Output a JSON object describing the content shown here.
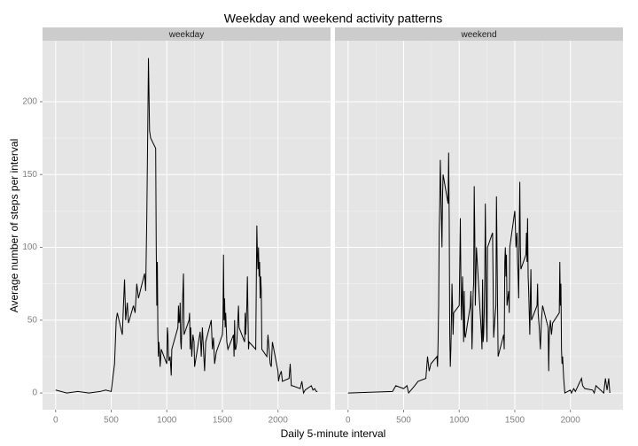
{
  "chart_data": {
    "type": "line",
    "title": "Weekday and weekend activity patterns",
    "x_label": "Daily 5-minute interval",
    "y_label": "Average number of steps per interval",
    "xlim": [
      -117.75,
      2472.75
    ],
    "xticks": [
      0,
      500,
      1000,
      1500,
      2000
    ],
    "ylim": [
      -11.5,
      241.9
    ],
    "yticks": [
      0,
      50,
      100,
      150,
      200
    ],
    "grid": true,
    "facets": true,
    "series": [
      {
        "name": "weekday",
        "color": "#000000",
        "x": [
          0,
          100,
          200,
          300,
          400,
          450,
          500,
          530,
          545,
          555,
          600,
          610,
          620,
          630,
          645,
          655,
          700,
          715,
          730,
          745,
          800,
          810,
          820,
          830,
          835,
          845,
          855,
          900,
          905,
          910,
          915,
          920,
          925,
          930,
          940,
          950,
          1000,
          1005,
          1010,
          1015,
          1020,
          1030,
          1040,
          1045,
          1100,
          1105,
          1110,
          1115,
          1120,
          1125,
          1130,
          1135,
          1150,
          1155,
          1200,
          1205,
          1210,
          1215,
          1225,
          1235,
          1245,
          1250,
          1300,
          1305,
          1310,
          1320,
          1330,
          1340,
          1350,
          1400,
          1410,
          1420,
          1430,
          1445,
          1500,
          1505,
          1510,
          1515,
          1520,
          1525,
          1530,
          1540,
          1550,
          1600,
          1605,
          1610,
          1615,
          1620,
          1630,
          1645,
          1650,
          1700,
          1705,
          1710,
          1720,
          1725,
          1735,
          1740,
          1800,
          1805,
          1810,
          1815,
          1820,
          1825,
          1830,
          1835,
          1840,
          1845,
          1850,
          1855,
          1900,
          1910,
          1920,
          1930,
          1940,
          1950,
          2000,
          2005,
          2015,
          2030,
          2040,
          2100,
          2110,
          2120,
          2130,
          2200,
          2215,
          2230,
          2245,
          2300,
          2315,
          2330,
          2345,
          2355
        ],
        "values": [
          2,
          0,
          1,
          0,
          1,
          2,
          1,
          20,
          50,
          55,
          40,
          60,
          78,
          50,
          62,
          48,
          60,
          55,
          75,
          65,
          82,
          70,
          120,
          190,
          230,
          180,
          175,
          168,
          100,
          60,
          90,
          40,
          25,
          35,
          18,
          30,
          20,
          45,
          40,
          25,
          22,
          25,
          12,
          30,
          45,
          60,
          48,
          50,
          62,
          35,
          30,
          45,
          82,
          40,
          50,
          55,
          30,
          45,
          25,
          40,
          35,
          18,
          42,
          35,
          25,
          45,
          30,
          15,
          35,
          50,
          30,
          38,
          20,
          28,
          40,
          48,
          95,
          50,
          65,
          45,
          55,
          35,
          30,
          40,
          25,
          50,
          30,
          30,
          35,
          60,
          45,
          35,
          55,
          40,
          60,
          80,
          30,
          35,
          30,
          75,
          115,
          95,
          85,
          100,
          80,
          90,
          65,
          80,
          70,
          30,
          25,
          40,
          30,
          20,
          18,
          35,
          15,
          8,
          12,
          15,
          8,
          10,
          20,
          5,
          5,
          3,
          8,
          0,
          2,
          5,
          2,
          3,
          1,
          1
        ]
      },
      {
        "name": "weekend",
        "color": "#000000",
        "x": [
          0,
          400,
          430,
          500,
          530,
          545,
          600,
          630,
          700,
          715,
          730,
          745,
          800,
          805,
          810,
          815,
          820,
          825,
          830,
          835,
          840,
          845,
          850,
          855,
          900,
          905,
          910,
          915,
          920,
          925,
          930,
          935,
          940,
          945,
          950,
          1000,
          1005,
          1010,
          1015,
          1020,
          1030,
          1040,
          1045,
          1050,
          1055,
          1100,
          1105,
          1110,
          1115,
          1120,
          1125,
          1130,
          1135,
          1140,
          1145,
          1150,
          1155,
          1200,
          1205,
          1210,
          1215,
          1220,
          1225,
          1230,
          1235,
          1240,
          1245,
          1250,
          1255,
          1300,
          1305,
          1310,
          1320,
          1330,
          1335,
          1340,
          1345,
          1350,
          1400,
          1405,
          1410,
          1415,
          1420,
          1425,
          1430,
          1445,
          1450,
          1455,
          1500,
          1505,
          1510,
          1515,
          1520,
          1525,
          1530,
          1535,
          1540,
          1545,
          1550,
          1555,
          1600,
          1605,
          1610,
          1615,
          1620,
          1625,
          1630,
          1635,
          1640,
          1645,
          1650,
          1700,
          1705,
          1710,
          1720,
          1730,
          1740,
          1750,
          1800,
          1805,
          1810,
          1820,
          1830,
          1840,
          1900,
          1905,
          1910,
          1915,
          1920,
          1925,
          1930,
          1940,
          1945,
          1950,
          2000,
          2010,
          2030,
          2045,
          2100,
          2110,
          2130,
          2200,
          2215,
          2230,
          2300,
          2315,
          2330,
          2345,
          2355
        ],
        "values": [
          0,
          1,
          5,
          3,
          5,
          0,
          5,
          8,
          10,
          25,
          15,
          20,
          25,
          18,
          35,
          60,
          110,
          130,
          160,
          140,
          120,
          100,
          135,
          150,
          130,
          165,
          120,
          40,
          18,
          30,
          50,
          75,
          60,
          40,
          55,
          60,
          90,
          120,
          80,
          50,
          80,
          35,
          70,
          40,
          38,
          60,
          70,
          55,
          30,
          45,
          68,
          75,
          142,
          110,
          60,
          80,
          100,
          40,
          30,
          78,
          35,
          40,
          55,
          80,
          130,
          90,
          50,
          35,
          100,
          110,
          75,
          38,
          50,
          60,
          135,
          100,
          60,
          25,
          40,
          30,
          90,
          100,
          80,
          95,
          60,
          70,
          55,
          100,
          125,
          115,
          100,
          105,
          110,
          90,
          80,
          65,
          110,
          145,
          100,
          85,
          95,
          110,
          90,
          120,
          80,
          70,
          55,
          40,
          65,
          85,
          50,
          60,
          75,
          55,
          45,
          30,
          50,
          60,
          45,
          15,
          40,
          50,
          40,
          48,
          55,
          90,
          60,
          75,
          30,
          20,
          25,
          10,
          5,
          0,
          2,
          0,
          3,
          1,
          10,
          5,
          3,
          2,
          0,
          5,
          0,
          10,
          2,
          10,
          0
        ]
      }
    ]
  }
}
